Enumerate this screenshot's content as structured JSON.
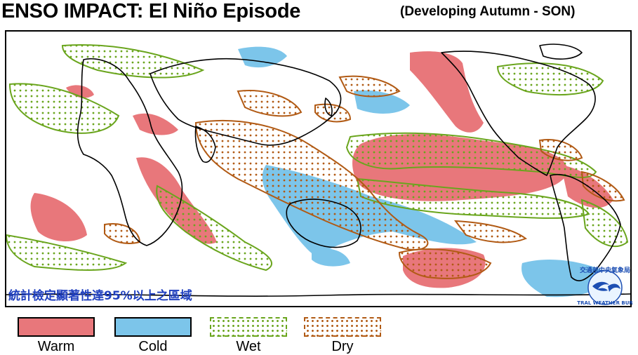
{
  "title": {
    "main": "ENSO IMPACT: El Niño Episode",
    "sub": "(Developing Autumn - SON)"
  },
  "map": {
    "note": "統計檢定顯著性達95%以上之區域",
    "logo_text": "交通部中央氣象局",
    "logo_text_en": "CENTRAL WEATHER BUREAU"
  },
  "legend": [
    {
      "label": "Warm",
      "color": "#e8777b"
    },
    {
      "label": "Cold",
      "color": "#7cc5ea"
    },
    {
      "label": "Wet",
      "color": "#6aa51d"
    },
    {
      "label": "Dry",
      "color": "#b15a14"
    }
  ],
  "colors": {
    "warm": "#e8777b",
    "cold": "#7cc5ea",
    "wet": "#6aa51d",
    "dry": "#b15a14",
    "coast": "#000000",
    "note": "#1f3fbf"
  }
}
